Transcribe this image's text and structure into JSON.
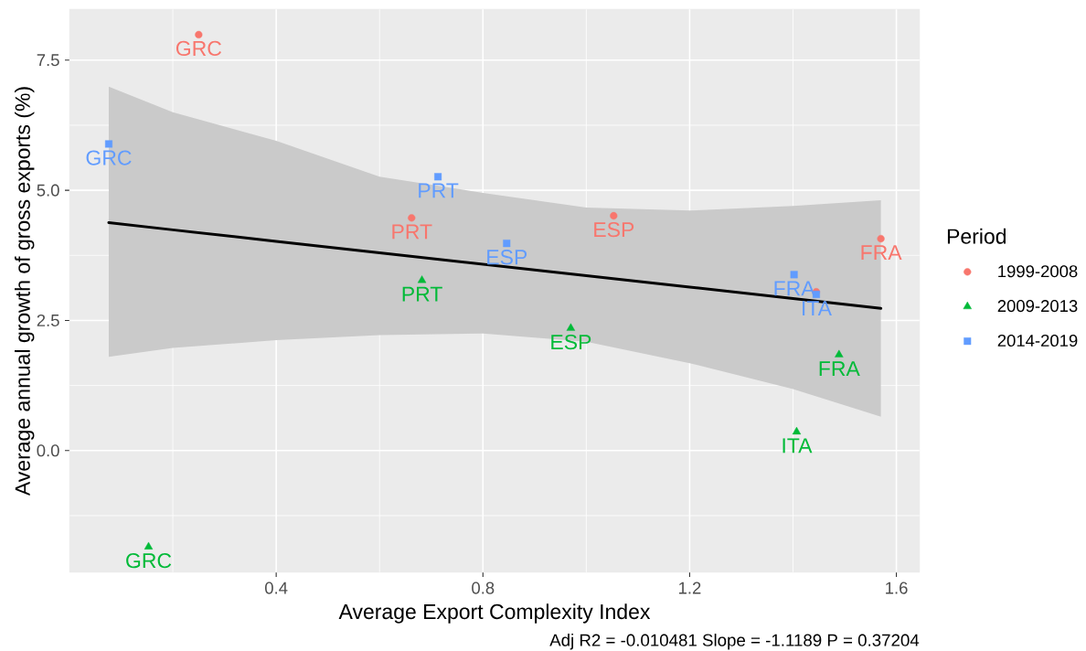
{
  "chart_data": {
    "type": "scatter",
    "xlabel": "Average Export Complexity Index",
    "ylabel": "Average annual growth of gross exports (%)",
    "legend_title": "Period",
    "annotations": [
      "Adj R2 =  -0.010481  Slope = -1.1189  P = 0.37204"
    ],
    "xlim": [
      0,
      1.645
    ],
    "ylim": [
      -2.34,
      8.48
    ],
    "xticks": [
      0.4,
      0.8,
      1.2,
      1.6
    ],
    "yticks": [
      {
        "value": 0,
        "label": "0.0"
      },
      2.5,
      {
        "value": 5,
        "label": "5.0"
      },
      7.5
    ],
    "grid": true,
    "legend": "right",
    "series": [
      {
        "type": "line",
        "color": "#000000",
        "x": [
          0.076,
          0.2,
          0.4,
          0.6,
          0.8,
          1.0,
          1.2,
          1.4,
          1.57
        ],
        "values": [
          4.38,
          4.24,
          4.02,
          3.8,
          3.58,
          3.36,
          3.14,
          2.92,
          2.73
        ],
        "lower": [
          1.8,
          1.97,
          2.12,
          2.22,
          2.25,
          2.09,
          1.68,
          1.18,
          0.65
        ],
        "upper": [
          6.99,
          6.5,
          5.95,
          5.26,
          4.95,
          4.67,
          4.61,
          4.7,
          4.81
        ]
      },
      {
        "name": "1999-2008",
        "color": "#f8766d",
        "marker": "circle",
        "x": [
          0.25,
          0.662,
          1.053,
          1.445,
          1.57
        ],
        "values": [
          7.99,
          4.47,
          4.51,
          3.05,
          4.07
        ],
        "value_labels": [
          "GRC",
          "PRT",
          "ESP",
          null,
          "FRA"
        ]
      },
      {
        "name": "2009-2013",
        "color": "#00ba38",
        "marker": "triangle",
        "x": [
          0.153,
          0.682,
          0.97,
          1.407,
          1.489
        ],
        "values": [
          -1.85,
          3.27,
          2.35,
          0.36,
          1.84
        ],
        "value_labels": [
          "GRC",
          "PRT",
          "ESP",
          "ITA",
          "FRA"
        ]
      },
      {
        "name": "2014-2019",
        "color": "#619cff",
        "marker": "square",
        "x": [
          0.076,
          0.713,
          0.846,
          1.402,
          1.445
        ],
        "values": [
          5.89,
          5.26,
          3.98,
          3.38,
          3.0
        ],
        "value_labels": [
          "GRC",
          "PRT",
          "ESP",
          "FRA",
          "ITA"
        ]
      }
    ]
  }
}
